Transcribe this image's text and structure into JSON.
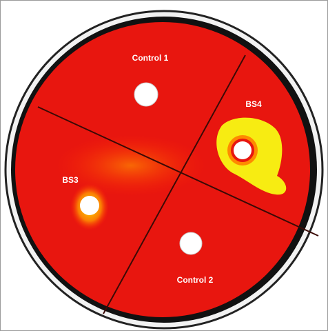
{
  "labels": [
    "Control 1",
    "BS4",
    "BS3",
    "Control 2"
  ]
}
